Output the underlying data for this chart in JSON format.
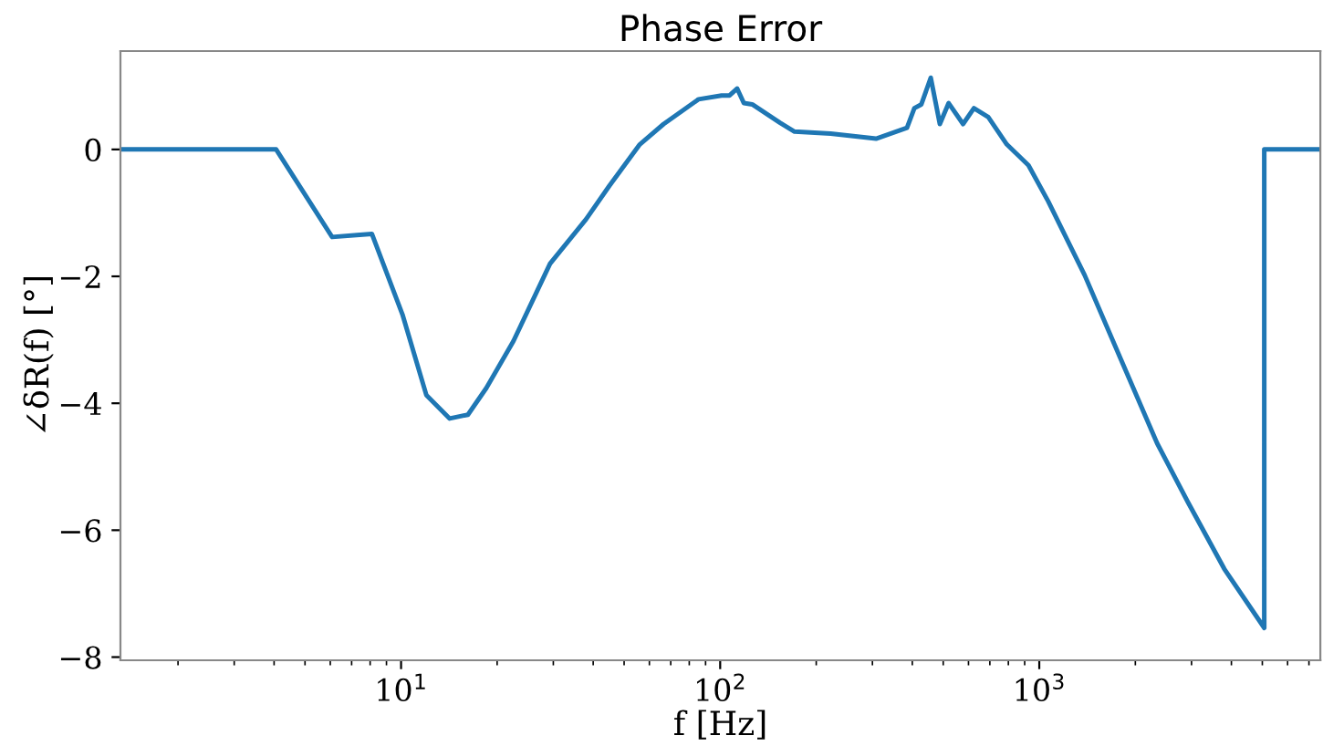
{
  "chart_data": {
    "type": "line",
    "title": "Phase Error",
    "xlabel": "f [Hz]",
    "ylabel": "∠δR(f) [°]",
    "log": "x",
    "grid": false,
    "marker": "none",
    "line_style": "solid",
    "xlim": [
      1.32,
      7600
    ],
    "ylim": [
      -8.05,
      1.55
    ],
    "xticks": [
      {
        "value": 10,
        "label": "10$^{1}$"
      },
      {
        "value": 100,
        "label": "10$^{2}$"
      },
      {
        "value": 1000,
        "label": "10$^{3}$"
      }
    ],
    "yticks": [
      -8,
      -6,
      -4,
      -2,
      0
    ],
    "series": [
      {
        "color": "#1f77b4",
        "x": [
          1.32,
          4.06,
          6.08,
          8.1,
          10.1,
          12.0,
          14.2,
          16.2,
          18.5,
          22.5,
          29.3,
          38,
          45,
          56,
          66.5,
          85.5,
          101,
          107,
          113,
          118.6,
          126,
          154,
          171,
          222,
          308,
          385,
          406,
          427,
          457,
          488,
          520,
          577,
          624,
          692,
          791,
          925,
          1067,
          1387,
          1803,
          2340,
          2924,
          3800,
          5070,
          5070,
          7600
        ],
        "values": [
          0,
          0,
          -1.38,
          -1.33,
          -2.6,
          -3.87,
          -4.24,
          -4.18,
          -3.76,
          -3.02,
          -1.8,
          -1.1,
          -0.57,
          0.08,
          0.4,
          0.79,
          0.85,
          0.85,
          0.96,
          0.73,
          0.71,
          0.42,
          0.28,
          0.25,
          0.17,
          0.34,
          0.65,
          0.71,
          1.13,
          0.4,
          0.73,
          0.4,
          0.65,
          0.51,
          0.08,
          -0.25,
          -0.82,
          -1.98,
          -3.31,
          -4.63,
          -5.56,
          -6.61,
          -7.54,
          0,
          0
        ]
      }
    ]
  }
}
